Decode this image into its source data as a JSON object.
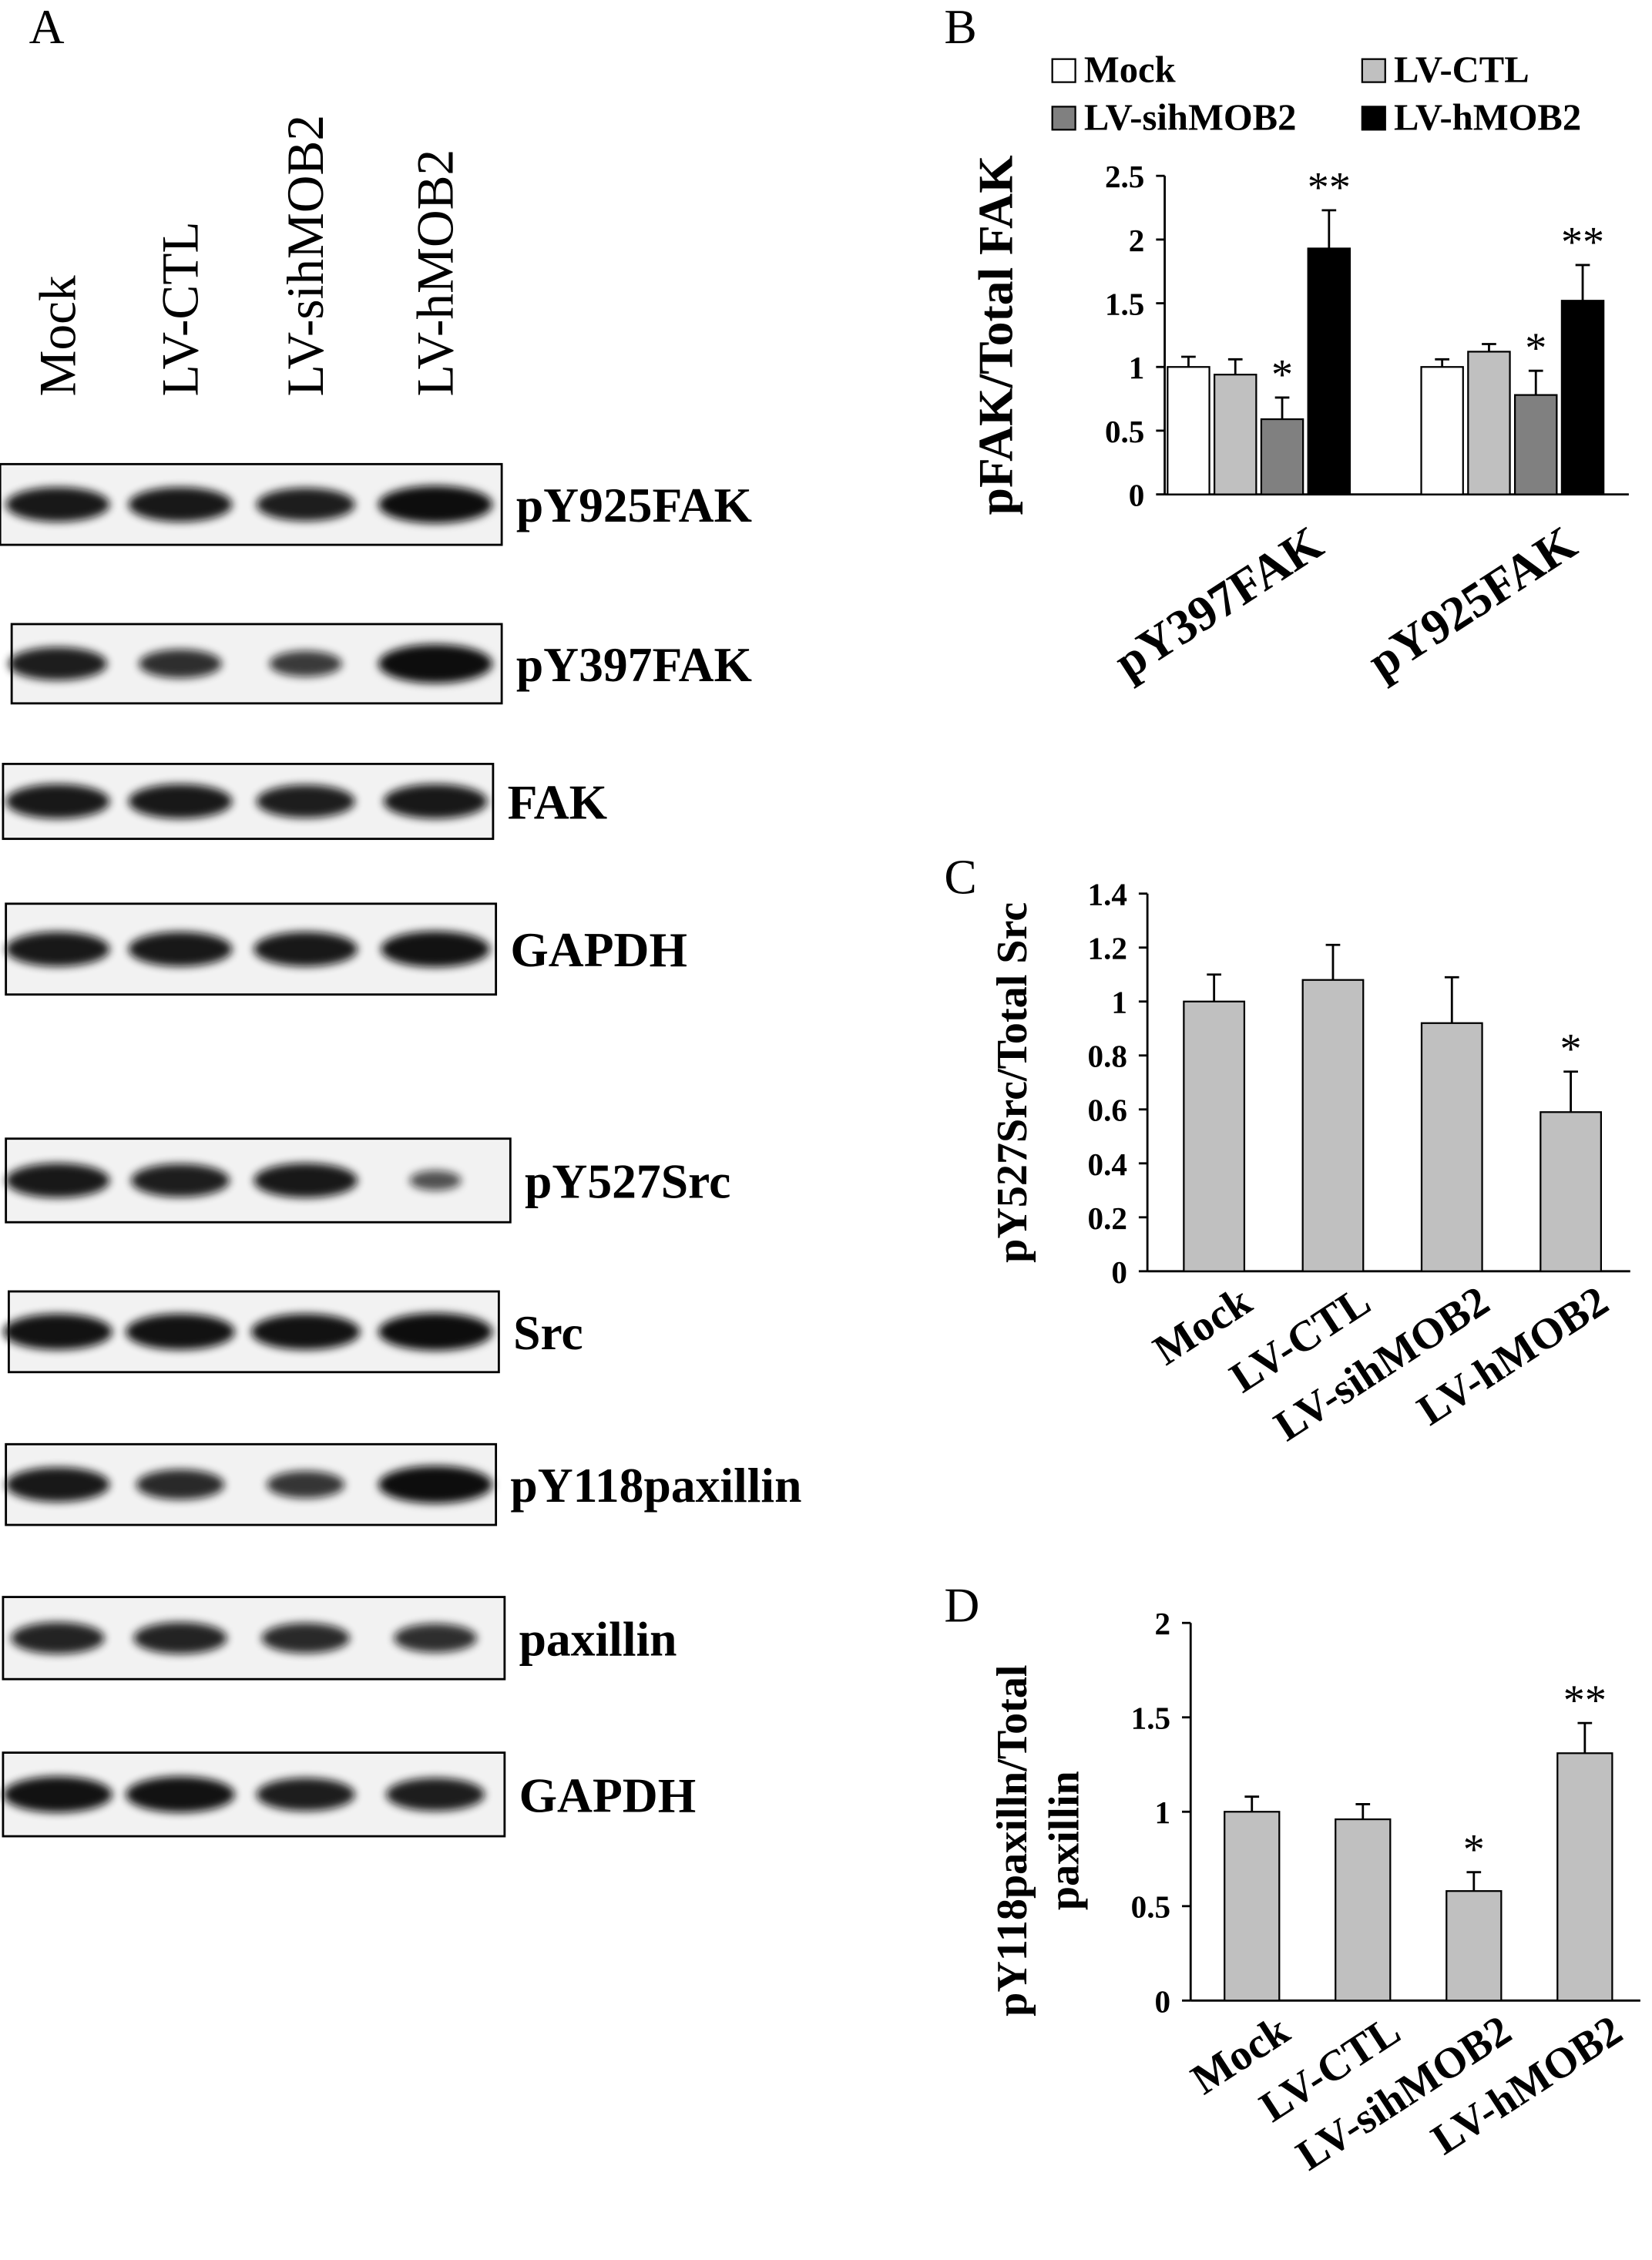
{
  "blot": {
    "panel_label": "A",
    "lanes": [
      "Mock",
      "LV-CTL",
      "LV-sihMOB2",
      "LV-hMOB2"
    ],
    "bands": [
      "pY925FAK",
      "pY397FAK",
      "FAK",
      "GAPDH",
      "pY527Src",
      "Src",
      "pY118paxillin",
      "paxillin",
      "GAPDH"
    ]
  },
  "chart_data": [
    {
      "type": "bar",
      "panel_label": "B",
      "ylabel": "pFAK/Total FAK",
      "categories": [
        "pY397FAK",
        "pY925FAK"
      ],
      "series": [
        {
          "name": "Mock",
          "color": "#ffffff",
          "values": [
            1.0,
            1.0
          ],
          "errors": [
            0.08,
            0.06
          ]
        },
        {
          "name": "LV-CTL",
          "color": "#c0c0c0",
          "values": [
            0.94,
            1.12
          ],
          "errors": [
            0.12,
            0.06
          ]
        },
        {
          "name": "LV-sihMOB2",
          "color": "#808080",
          "values": [
            0.59,
            0.78
          ],
          "errors": [
            0.17,
            0.19
          ],
          "annotations": [
            "*",
            "*"
          ]
        },
        {
          "name": "LV-hMOB2",
          "color": "#000000",
          "values": [
            1.93,
            1.52
          ],
          "errors": [
            0.3,
            0.28
          ],
          "annotations": [
            "**",
            "**"
          ]
        }
      ],
      "ylim": [
        0,
        2.5
      ],
      "yticks": [
        0,
        0.5,
        1,
        1.5,
        2,
        2.5
      ],
      "legend": "top"
    },
    {
      "type": "bar",
      "panel_label": "C",
      "ylabel": "pY527Src/Total Src",
      "categories": [
        "Mock",
        "LV-CTL",
        "LV-sihMOB2",
        "LV-hMOB2"
      ],
      "series": [
        {
          "color": "#c0c0c0",
          "values": [
            1.0,
            1.08,
            0.92,
            0.59
          ],
          "errors": [
            0.1,
            0.13,
            0.17,
            0.15
          ],
          "annotations": [
            null,
            null,
            null,
            "*"
          ]
        }
      ],
      "ylim": [
        0,
        1.4
      ],
      "yticks": [
        0,
        0.2,
        0.4,
        0.6,
        0.8,
        1,
        1.2,
        1.4
      ]
    },
    {
      "type": "bar",
      "panel_label": "D",
      "ylabel": [
        "pY118paxilln/Total",
        "paxillin"
      ],
      "categories": [
        "Mock",
        "LV-CTL",
        "LV-sihMOB2",
        "LV-hMOB2"
      ],
      "series": [
        {
          "color": "#c0c0c0",
          "values": [
            1.0,
            0.96,
            0.58,
            1.31
          ],
          "errors": [
            0.08,
            0.08,
            0.1,
            0.16
          ],
          "annotations": [
            null,
            null,
            "*",
            "**"
          ]
        }
      ],
      "ylim": [
        0,
        2
      ],
      "yticks": [
        0,
        0.5,
        1,
        1.5,
        2
      ]
    }
  ]
}
